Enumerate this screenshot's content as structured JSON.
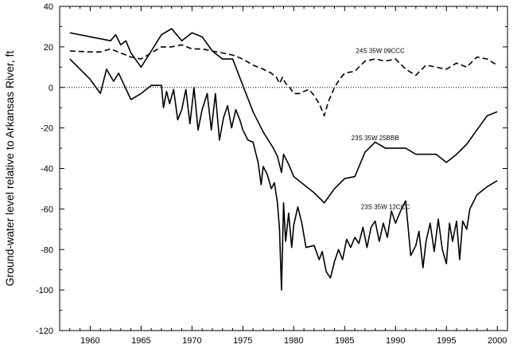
{
  "chart_data": {
    "type": "line",
    "title": "",
    "xlabel": "",
    "ylabel": "Ground-water level relative to Arkansas River, ft",
    "xlim": [
      1957,
      2001
    ],
    "ylim": [
      -120,
      40
    ],
    "xticks": [
      1960,
      1965,
      1970,
      1975,
      1980,
      1985,
      1990,
      1995,
      2000
    ],
    "yticks": [
      -120,
      -100,
      -80,
      -60,
      -40,
      -20,
      0,
      20,
      40
    ],
    "grid": false,
    "reference_line": {
      "y": 0,
      "style": "dotted"
    },
    "series": [
      {
        "name": "24S 35W 09CCC",
        "label_at": [
          1988.5,
          17
        ],
        "style": "dashed",
        "points": [
          [
            1958,
            18
          ],
          [
            1960,
            17.5
          ],
          [
            1961,
            17.5
          ],
          [
            1962,
            19
          ],
          [
            1963,
            17
          ],
          [
            1964,
            15
          ],
          [
            1965,
            14
          ],
          [
            1966,
            17
          ],
          [
            1967,
            20
          ],
          [
            1968,
            20
          ],
          [
            1969,
            21
          ],
          [
            1970,
            19
          ],
          [
            1971,
            19
          ],
          [
            1972,
            18
          ],
          [
            1973,
            17
          ],
          [
            1974,
            16
          ],
          [
            1975,
            14
          ],
          [
            1976,
            11
          ],
          [
            1977,
            9
          ],
          [
            1977.8,
            7
          ],
          [
            1978.3,
            5
          ],
          [
            1978.6,
            2
          ],
          [
            1978.9,
            5
          ],
          [
            1979.2,
            2
          ],
          [
            1979.6,
            0
          ],
          [
            1980,
            -3
          ],
          [
            1980.6,
            -3
          ],
          [
            1981,
            -2
          ],
          [
            1981.5,
            -1
          ],
          [
            1982,
            -4
          ],
          [
            1982.5,
            -8
          ],
          [
            1983,
            -14
          ],
          [
            1983.4,
            -7
          ],
          [
            1984,
            0
          ],
          [
            1984.5,
            4
          ],
          [
            1985,
            7
          ],
          [
            1986,
            8
          ],
          [
            1987,
            13
          ],
          [
            1988,
            14
          ],
          [
            1989,
            13
          ],
          [
            1990,
            14
          ],
          [
            1991,
            9
          ],
          [
            1992,
            6
          ],
          [
            1993,
            11
          ],
          [
            1994,
            10
          ],
          [
            1995,
            9
          ],
          [
            1996,
            12
          ],
          [
            1997,
            10
          ],
          [
            1998,
            15
          ],
          [
            1999,
            14
          ],
          [
            2000,
            11
          ]
        ]
      },
      {
        "name": "23S 35W 25BBB",
        "label_at": [
          1988,
          -26
        ],
        "style": "solid",
        "points": [
          [
            1958,
            27
          ],
          [
            1960,
            25
          ],
          [
            1962,
            23
          ],
          [
            1962.5,
            26
          ],
          [
            1963,
            21
          ],
          [
            1963.5,
            23
          ],
          [
            1964,
            17
          ],
          [
            1965,
            10
          ],
          [
            1966,
            18
          ],
          [
            1967,
            26
          ],
          [
            1968,
            29
          ],
          [
            1969,
            23
          ],
          [
            1970,
            27
          ],
          [
            1971,
            25
          ],
          [
            1972,
            18
          ],
          [
            1973,
            14
          ],
          [
            1974,
            14
          ],
          [
            1975,
            1
          ],
          [
            1976,
            -12
          ],
          [
            1977,
            -22
          ],
          [
            1978,
            -30
          ],
          [
            1978.4,
            -34
          ],
          [
            1978.8,
            -42
          ],
          [
            1979,
            -33
          ],
          [
            1979.5,
            -38
          ],
          [
            1980,
            -44
          ],
          [
            1982,
            -52
          ],
          [
            1983,
            -57
          ],
          [
            1984,
            -50
          ],
          [
            1985,
            -45
          ],
          [
            1986,
            -44
          ],
          [
            1987,
            -32
          ],
          [
            1988,
            -27
          ],
          [
            1989,
            -30
          ],
          [
            1990,
            -30
          ],
          [
            1991,
            -30
          ],
          [
            1992,
            -33
          ],
          [
            1993,
            -33
          ],
          [
            1994,
            -33
          ],
          [
            1995,
            -37
          ],
          [
            1996,
            -33
          ],
          [
            1997,
            -28
          ],
          [
            1998,
            -21
          ],
          [
            1999,
            -14
          ],
          [
            2000,
            -12
          ]
        ]
      },
      {
        "name": "23S 35W 12CCC",
        "label_at": [
          1989,
          -60
        ],
        "style": "solid",
        "points": [
          [
            1958,
            14
          ],
          [
            1960,
            4
          ],
          [
            1961,
            -3
          ],
          [
            1961.6,
            9
          ],
          [
            1962.3,
            3
          ],
          [
            1962.8,
            7
          ],
          [
            1964,
            -6
          ],
          [
            1965,
            -3
          ],
          [
            1966,
            1
          ],
          [
            1967,
            1
          ],
          [
            1967.2,
            -10
          ],
          [
            1967.5,
            -2
          ],
          [
            1967.8,
            -8
          ],
          [
            1968.2,
            -1
          ],
          [
            1968.6,
            -16
          ],
          [
            1969,
            -11
          ],
          [
            1969.4,
            -1
          ],
          [
            1969.8,
            -18
          ],
          [
            1970.2,
            0
          ],
          [
            1970.6,
            -21
          ],
          [
            1971,
            -11
          ],
          [
            1971.5,
            -3
          ],
          [
            1971.9,
            -21
          ],
          [
            1972.3,
            -3
          ],
          [
            1972.7,
            -26
          ],
          [
            1973.1,
            -15
          ],
          [
            1973.5,
            -9
          ],
          [
            1973.9,
            -20
          ],
          [
            1974.3,
            -11
          ],
          [
            1974.7,
            -16
          ],
          [
            1975,
            -21
          ],
          [
            1975.5,
            -26
          ],
          [
            1976,
            -27
          ],
          [
            1976.5,
            -37
          ],
          [
            1976.8,
            -48
          ],
          [
            1977,
            -39
          ],
          [
            1977.4,
            -43
          ],
          [
            1977.8,
            -50
          ],
          [
            1978.1,
            -47
          ],
          [
            1978.4,
            -57
          ],
          [
            1978.6,
            -70
          ],
          [
            1978.8,
            -100
          ],
          [
            1979,
            -57
          ],
          [
            1979.2,
            -76
          ],
          [
            1979.5,
            -62
          ],
          [
            1979.8,
            -79
          ],
          [
            1980,
            -68
          ],
          [
            1980.4,
            -59
          ],
          [
            1980.8,
            -67
          ],
          [
            1981.2,
            -79
          ],
          [
            1982,
            -78
          ],
          [
            1982.5,
            -85
          ],
          [
            1982.8,
            -81
          ],
          [
            1983.2,
            -91
          ],
          [
            1983.6,
            -94
          ],
          [
            1984,
            -86
          ],
          [
            1984.4,
            -80
          ],
          [
            1984.8,
            -85
          ],
          [
            1985.2,
            -75
          ],
          [
            1985.6,
            -79
          ],
          [
            1986,
            -74
          ],
          [
            1986.4,
            -77
          ],
          [
            1986.8,
            -69
          ],
          [
            1987.2,
            -79
          ],
          [
            1987.6,
            -69
          ],
          [
            1988,
            -66
          ],
          [
            1988.4,
            -76
          ],
          [
            1988.8,
            -67
          ],
          [
            1989.2,
            -74
          ],
          [
            1989.6,
            -61
          ],
          [
            1990,
            -67
          ],
          [
            1990.5,
            -61
          ],
          [
            1991,
            -56
          ],
          [
            1991.5,
            -83
          ],
          [
            1992,
            -78
          ],
          [
            1992.3,
            -71
          ],
          [
            1992.7,
            -89
          ],
          [
            1993,
            -76
          ],
          [
            1993.4,
            -67
          ],
          [
            1993.8,
            -81
          ],
          [
            1994.2,
            -65
          ],
          [
            1994.6,
            -80
          ],
          [
            1995,
            -87
          ],
          [
            1995.3,
            -67
          ],
          [
            1995.6,
            -76
          ],
          [
            1996,
            -66
          ],
          [
            1996.3,
            -85
          ],
          [
            1996.6,
            -66
          ],
          [
            1997,
            -70
          ],
          [
            1997.3,
            -60
          ],
          [
            1998,
            -53
          ],
          [
            1999,
            -49
          ],
          [
            2000,
            -46
          ]
        ]
      }
    ]
  }
}
